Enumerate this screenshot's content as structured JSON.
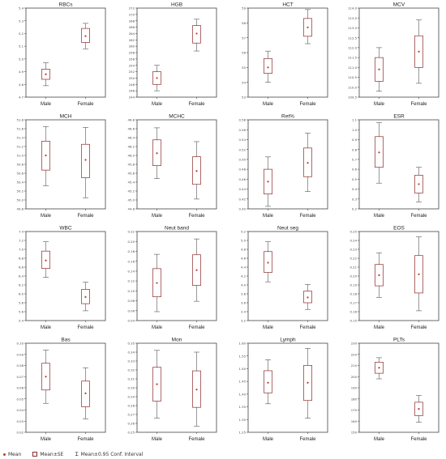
{
  "x_categories": [
    "Male",
    "Female"
  ],
  "legend": {
    "items": [
      {
        "label": "Mean",
        "icon": "mean-dot-icon"
      },
      {
        "label": "Mean±SE",
        "icon": "box-icon"
      },
      {
        "label": "Mean±0.95 Conf. Interval",
        "icon": "whisker-icon"
      }
    ]
  },
  "colors": {
    "box": "#8c2a2a",
    "mean": "#c0392b",
    "whisker": "#555555",
    "frame": "#444444"
  },
  "chart_data": [
    {
      "type": "box",
      "title": "RBCs",
      "ylim": [
        4.7,
        5.4
      ],
      "yticks": [
        4.7,
        4.8,
        4.9,
        5.0,
        5.1,
        5.2,
        5.3,
        5.4
      ],
      "tickfmt": 1,
      "series": [
        {
          "category": "Male",
          "mean": 4.88,
          "se_low": 4.84,
          "se_high": 4.92,
          "ci_low": 4.79,
          "ci_high": 4.97
        },
        {
          "category": "Female",
          "mean": 5.18,
          "se_low": 5.13,
          "se_high": 5.24,
          "ci_low": 5.08,
          "ci_high": 5.28
        }
      ]
    },
    {
      "type": "box",
      "title": "HGB",
      "ylim": [
        244,
        272
      ],
      "yticks": [
        244,
        246,
        248,
        250,
        252,
        254,
        256,
        258,
        260,
        262,
        264,
        266,
        268,
        270,
        272
      ],
      "tickfmt": 0,
      "series": [
        {
          "category": "Male",
          "mean": 250.0,
          "se_low": 248.0,
          "se_high": 252.0,
          "ci_low": 246.0,
          "ci_high": 254.0
        },
        {
          "category": "Female",
          "mean": 264.0,
          "se_low": 261.0,
          "se_high": 266.5,
          "ci_low": 258.5,
          "ci_high": 268.5
        }
      ]
    },
    {
      "type": "box",
      "title": "HCT",
      "ylim": [
        53,
        59
      ],
      "yticks": [
        53,
        54,
        55,
        56,
        57,
        58,
        59
      ],
      "tickfmt": 0,
      "series": [
        {
          "category": "Male",
          "mean": 55.0,
          "se_low": 54.6,
          "se_high": 55.6,
          "ci_low": 54.0,
          "ci_high": 56.1
        },
        {
          "category": "Female",
          "mean": 57.7,
          "se_low": 57.1,
          "se_high": 58.3,
          "ci_low": 56.6,
          "ci_high": 58.9
        }
      ]
    },
    {
      "type": "box",
      "title": "MCV",
      "ylim": [
        109.5,
        114.0
      ],
      "yticks": [
        109.5,
        110.0,
        110.5,
        111.0,
        111.5,
        112.0,
        112.5,
        113.0,
        113.5,
        114.0
      ],
      "tickfmt": 1,
      "series": [
        {
          "category": "Male",
          "mean": 110.9,
          "se_low": 110.3,
          "se_high": 111.5,
          "ci_low": 109.8,
          "ci_high": 112.0
        },
        {
          "category": "Female",
          "mean": 111.8,
          "se_low": 111.0,
          "se_high": 112.6,
          "ci_low": 110.2,
          "ci_high": 113.4
        }
      ]
    },
    {
      "type": "box",
      "title": "MCH",
      "ylim": [
        49.8,
        51.8
      ],
      "yticks": [
        49.8,
        50.0,
        50.2,
        50.4,
        50.6,
        50.8,
        51.0,
        51.2,
        51.4,
        51.6,
        51.8
      ],
      "tickfmt": 1,
      "series": [
        {
          "category": "Male",
          "mean": 51.0,
          "se_low": 50.67,
          "se_high": 51.32,
          "ci_low": 50.32,
          "ci_high": 51.65
        },
        {
          "category": "Female",
          "mean": 50.9,
          "se_low": 50.5,
          "se_high": 51.25,
          "ci_low": 50.05,
          "ci_high": 51.63
        }
      ]
    },
    {
      "type": "box",
      "title": "MCHC",
      "ylim": [
        44.8,
        46.8
      ],
      "yticks": [
        44.8,
        45.0,
        45.2,
        45.4,
        45.6,
        45.8,
        46.0,
        46.2,
        46.4,
        46.6,
        46.8
      ],
      "tickfmt": 1,
      "series": [
        {
          "category": "Male",
          "mean": 46.05,
          "se_low": 45.77,
          "se_high": 46.35,
          "ci_low": 45.48,
          "ci_high": 46.62
        },
        {
          "category": "Female",
          "mean": 45.65,
          "se_low": 45.35,
          "se_high": 45.97,
          "ci_low": 45.02,
          "ci_high": 46.31
        }
      ]
    },
    {
      "type": "box",
      "title": "Ret%",
      "ylim": [
        0.4,
        0.58
      ],
      "yticks": [
        0.4,
        0.42,
        0.44,
        0.46,
        0.48,
        0.5,
        0.52,
        0.54,
        0.56,
        0.58
      ],
      "tickfmt": 2,
      "series": [
        {
          "category": "Male",
          "mean": 0.455,
          "se_low": 0.43,
          "se_high": 0.48,
          "ci_low": 0.405,
          "ci_high": 0.505
        },
        {
          "category": "Female",
          "mean": 0.493,
          "se_low": 0.465,
          "se_high": 0.523,
          "ci_low": 0.435,
          "ci_high": 0.553
        }
      ]
    },
    {
      "type": "box",
      "title": "ESR",
      "ylim": [
        0.2,
        1.1
      ],
      "yticks": [
        0.2,
        0.3,
        0.4,
        0.5,
        0.6,
        0.7,
        0.8,
        0.9,
        1.0,
        1.1
      ],
      "tickfmt": 1,
      "series": [
        {
          "category": "Male",
          "mean": 0.77,
          "se_low": 0.62,
          "se_high": 0.93,
          "ci_low": 0.46,
          "ci_high": 1.07
        },
        {
          "category": "Female",
          "mean": 0.45,
          "se_low": 0.36,
          "se_high": 0.54,
          "ci_low": 0.27,
          "ci_high": 0.62
        }
      ]
    },
    {
      "type": "box",
      "title": "WBC",
      "ylim": [
        5.4,
        7.4
      ],
      "yticks": [
        5.4,
        5.6,
        5.8,
        6.0,
        6.2,
        6.4,
        6.6,
        6.8,
        7.0,
        7.2,
        7.4
      ],
      "tickfmt": 1,
      "series": [
        {
          "category": "Male",
          "mean": 6.75,
          "se_low": 6.57,
          "se_high": 6.96,
          "ci_low": 6.37,
          "ci_high": 7.17
        },
        {
          "category": "Female",
          "mean": 5.93,
          "se_low": 5.78,
          "se_high": 6.1,
          "ci_low": 5.62,
          "ci_high": 6.26
        }
      ]
    },
    {
      "type": "box",
      "title": "Neut band",
      "ylim": [
        0.04,
        0.22
      ],
      "yticks": [
        0.04,
        0.06,
        0.08,
        0.1,
        0.12,
        0.14,
        0.16,
        0.18,
        0.2,
        0.22
      ],
      "tickfmt": 2,
      "series": [
        {
          "category": "Male",
          "mean": 0.116,
          "se_low": 0.088,
          "se_high": 0.145,
          "ci_low": 0.058,
          "ci_high": 0.174
        },
        {
          "category": "Female",
          "mean": 0.142,
          "se_low": 0.111,
          "se_high": 0.173,
          "ci_low": 0.079,
          "ci_high": 0.205
        }
      ]
    },
    {
      "type": "box",
      "title": "Neut seg",
      "ylim": [
        3.2,
        5.2
      ],
      "yticks": [
        3.2,
        3.4,
        3.6,
        3.8,
        4.0,
        4.2,
        4.4,
        4.6,
        4.8,
        5.0,
        5.2
      ],
      "tickfmt": 1,
      "series": [
        {
          "category": "Male",
          "mean": 4.5,
          "se_low": 4.28,
          "se_high": 4.75,
          "ci_low": 4.07,
          "ci_high": 4.97
        },
        {
          "category": "Female",
          "mean": 3.72,
          "se_low": 3.6,
          "se_high": 3.86,
          "ci_low": 3.45,
          "ci_high": 4.01
        }
      ]
    },
    {
      "type": "box",
      "title": "EOS",
      "ylim": [
        0.15,
        0.25
      ],
      "yticks": [
        0.15,
        0.16,
        0.17,
        0.18,
        0.19,
        0.2,
        0.21,
        0.22,
        0.23,
        0.24,
        0.25
      ],
      "tickfmt": 2,
      "series": [
        {
          "category": "Male",
          "mean": 0.201,
          "se_low": 0.189,
          "se_high": 0.213,
          "ci_low": 0.176,
          "ci_high": 0.226
        },
        {
          "category": "Female",
          "mean": 0.202,
          "se_low": 0.181,
          "se_high": 0.223,
          "ci_low": 0.161,
          "ci_high": 0.244
        }
      ]
    },
    {
      "type": "box",
      "title": "Bas",
      "ylim": [
        0.02,
        0.1
      ],
      "yticks": [
        0.02,
        0.03,
        0.04,
        0.05,
        0.06,
        0.07,
        0.08,
        0.09,
        0.1
      ],
      "tickfmt": 2,
      "series": [
        {
          "category": "Male",
          "mean": 0.07,
          "se_low": 0.058,
          "se_high": 0.082,
          "ci_low": 0.046,
          "ci_high": 0.094
        },
        {
          "category": "Female",
          "mean": 0.055,
          "se_low": 0.043,
          "se_high": 0.066,
          "ci_low": 0.032,
          "ci_high": 0.078
        }
      ]
    },
    {
      "type": "box",
      "title": "Mon",
      "ylim": [
        0.25,
        0.35
      ],
      "yticks": [
        0.25,
        0.26,
        0.27,
        0.28,
        0.29,
        0.3,
        0.31,
        0.32,
        0.33,
        0.34,
        0.35
      ],
      "tickfmt": 2,
      "series": [
        {
          "category": "Male",
          "mean": 0.304,
          "se_low": 0.285,
          "se_high": 0.323,
          "ci_low": 0.266,
          "ci_high": 0.342
        },
        {
          "category": "Female",
          "mean": 0.298,
          "se_low": 0.278,
          "se_high": 0.319,
          "ci_low": 0.257,
          "ci_high": 0.34
        }
      ]
    },
    {
      "type": "box",
      "title": "Lymph",
      "ylim": [
        1.25,
        1.6
      ],
      "yticks": [
        1.25,
        1.3,
        1.35,
        1.4,
        1.45,
        1.5,
        1.55,
        1.6
      ],
      "tickfmt": 2,
      "series": [
        {
          "category": "Male",
          "mean": 1.445,
          "se_low": 1.405,
          "se_high": 1.492,
          "ci_low": 1.362,
          "ci_high": 1.535
        },
        {
          "category": "Female",
          "mean": 1.445,
          "se_low": 1.375,
          "se_high": 1.513,
          "ci_low": 1.305,
          "ci_high": 1.58
        }
      ]
    },
    {
      "type": "box",
      "title": "PLTs",
      "ylim": [
        150,
        230
      ],
      "yticks": [
        150,
        160,
        170,
        180,
        190,
        200,
        210,
        220,
        230
      ],
      "tickfmt": 0,
      "series": [
        {
          "category": "Male",
          "mean": 208,
          "se_low": 203,
          "se_high": 213,
          "ci_low": 198,
          "ci_high": 217
        },
        {
          "category": "Female",
          "mean": 171,
          "se_low": 165,
          "se_high": 177,
          "ci_low": 159,
          "ci_high": 183
        }
      ]
    }
  ]
}
